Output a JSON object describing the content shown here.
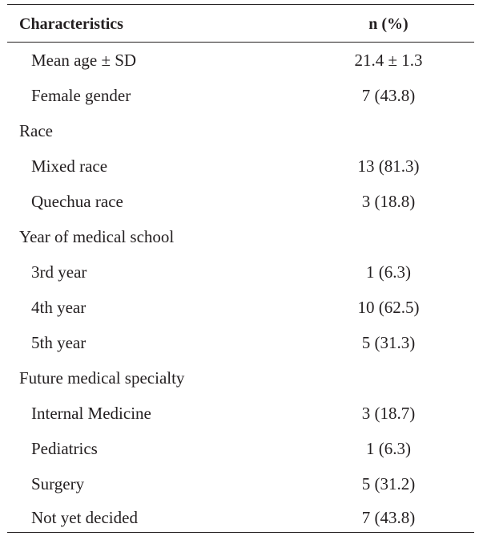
{
  "table": {
    "header": {
      "characteristics": "Characteristics",
      "n_percent": "n (%)"
    },
    "rows": [
      {
        "label": "Mean age ± SD",
        "value": "21.4 ± 1.3",
        "indent": true
      },
      {
        "label": "Female gender",
        "value": "7 (43.8)",
        "indent": true
      },
      {
        "label": "Race",
        "value": "",
        "indent": false
      },
      {
        "label": "Mixed race",
        "value": "13 (81.3)",
        "indent": true
      },
      {
        "label": "Quechua race",
        "value": "3 (18.8)",
        "indent": true
      },
      {
        "label": "Year of medical school",
        "value": "",
        "indent": false
      },
      {
        "label": "3rd year",
        "value": "1 (6.3)",
        "indent": true
      },
      {
        "label": "4th year",
        "value": "10 (62.5)",
        "indent": true
      },
      {
        "label": "5th year",
        "value": "5 (31.3)",
        "indent": true
      },
      {
        "label": "Future medical specialty",
        "value": "",
        "indent": false
      },
      {
        "label": "Internal Medicine",
        "value": "3 (18.7)",
        "indent": true
      },
      {
        "label": "Pediatrics",
        "value": "1 (6.3)",
        "indent": true
      },
      {
        "label": "Surgery",
        "value": "5 (31.2)",
        "indent": true
      },
      {
        "label": "Not yet decided",
        "value": "7 (43.8)",
        "indent": true
      }
    ]
  }
}
